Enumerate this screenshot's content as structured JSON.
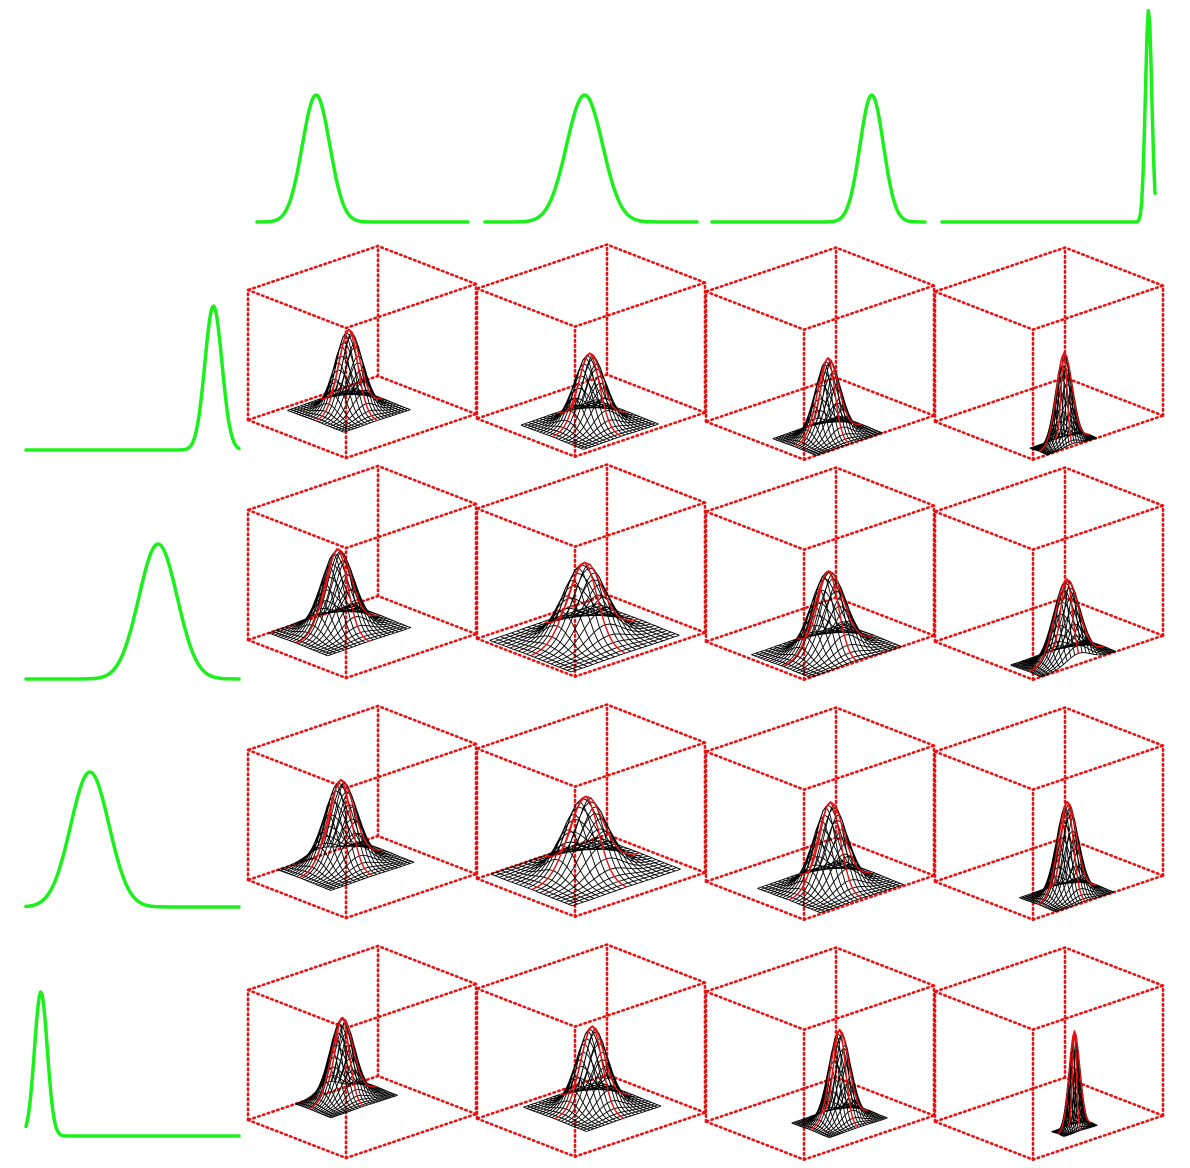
{
  "colors": {
    "background": "#ffffff",
    "marginal_curve": "#1cf01c",
    "box_edges": "#e81010",
    "mesh": "#000000",
    "mesh_ridge": "#e81010"
  },
  "chart_data": {
    "type": "grid-of-surface-plots",
    "description_in_image": "",
    "rows": 4,
    "cols": 4,
    "top_marginals": [
      {
        "mean": 0.28,
        "sd": 0.065
      },
      {
        "mean": 0.47,
        "sd": 0.085
      },
      {
        "mean": 0.75,
        "sd": 0.055
      },
      {
        "mean": 0.97,
        "sd": 0.015
      }
    ],
    "left_marginals": [
      {
        "mean": 0.88,
        "sd": 0.04
      },
      {
        "mean": 0.62,
        "sd": 0.09
      },
      {
        "mean": 0.3,
        "sd": 0.09
      },
      {
        "mean": 0.07,
        "sd": 0.03
      }
    ],
    "surfaces": [
      [
        {
          "mx": 0.34,
          "my": 0.52,
          "sx": 0.09,
          "sy": 0.08,
          "amp": 0.62
        },
        {
          "mx": 0.62,
          "my": 0.4,
          "sx": 0.1,
          "sy": 0.09,
          "amp": 0.55
        },
        {
          "mx": 0.78,
          "my": 0.35,
          "sx": 0.07,
          "sy": 0.08,
          "amp": 0.6
        },
        {
          "mx": 0.92,
          "my": 0.3,
          "sx": 0.03,
          "sy": 0.06,
          "amp": 0.7
        }
      ],
      [
        {
          "mx": 0.28,
          "my": 0.48,
          "sx": 0.1,
          "sy": 0.1,
          "amp": 0.62
        },
        {
          "mx": 0.5,
          "my": 0.45,
          "sx": 0.13,
          "sy": 0.13,
          "amp": 0.58
        },
        {
          "mx": 0.72,
          "my": 0.4,
          "sx": 0.1,
          "sy": 0.11,
          "amp": 0.62
        },
        {
          "mx": 0.88,
          "my": 0.35,
          "sx": 0.06,
          "sy": 0.09,
          "amp": 0.62
        }
      ],
      [
        {
          "mx": 0.22,
          "my": 0.55,
          "sx": 0.1,
          "sy": 0.1,
          "amp": 0.65
        },
        {
          "mx": 0.42,
          "my": 0.52,
          "sx": 0.13,
          "sy": 0.13,
          "amp": 0.58
        },
        {
          "mx": 0.66,
          "my": 0.46,
          "sx": 0.1,
          "sy": 0.1,
          "amp": 0.65
        },
        {
          "mx": 0.82,
          "my": 0.4,
          "sx": 0.06,
          "sy": 0.07,
          "amp": 0.72
        }
      ],
      [
        {
          "mx": 0.14,
          "my": 0.62,
          "sx": 0.07,
          "sy": 0.08,
          "amp": 0.62
        },
        {
          "mx": 0.38,
          "my": 0.6,
          "sx": 0.1,
          "sy": 0.09,
          "amp": 0.62
        },
        {
          "mx": 0.62,
          "my": 0.56,
          "sx": 0.06,
          "sy": 0.07,
          "amp": 0.7
        },
        {
          "mx": 0.76,
          "my": 0.5,
          "sx": 0.02,
          "sy": 0.04,
          "amp": 0.75
        }
      ]
    ]
  }
}
